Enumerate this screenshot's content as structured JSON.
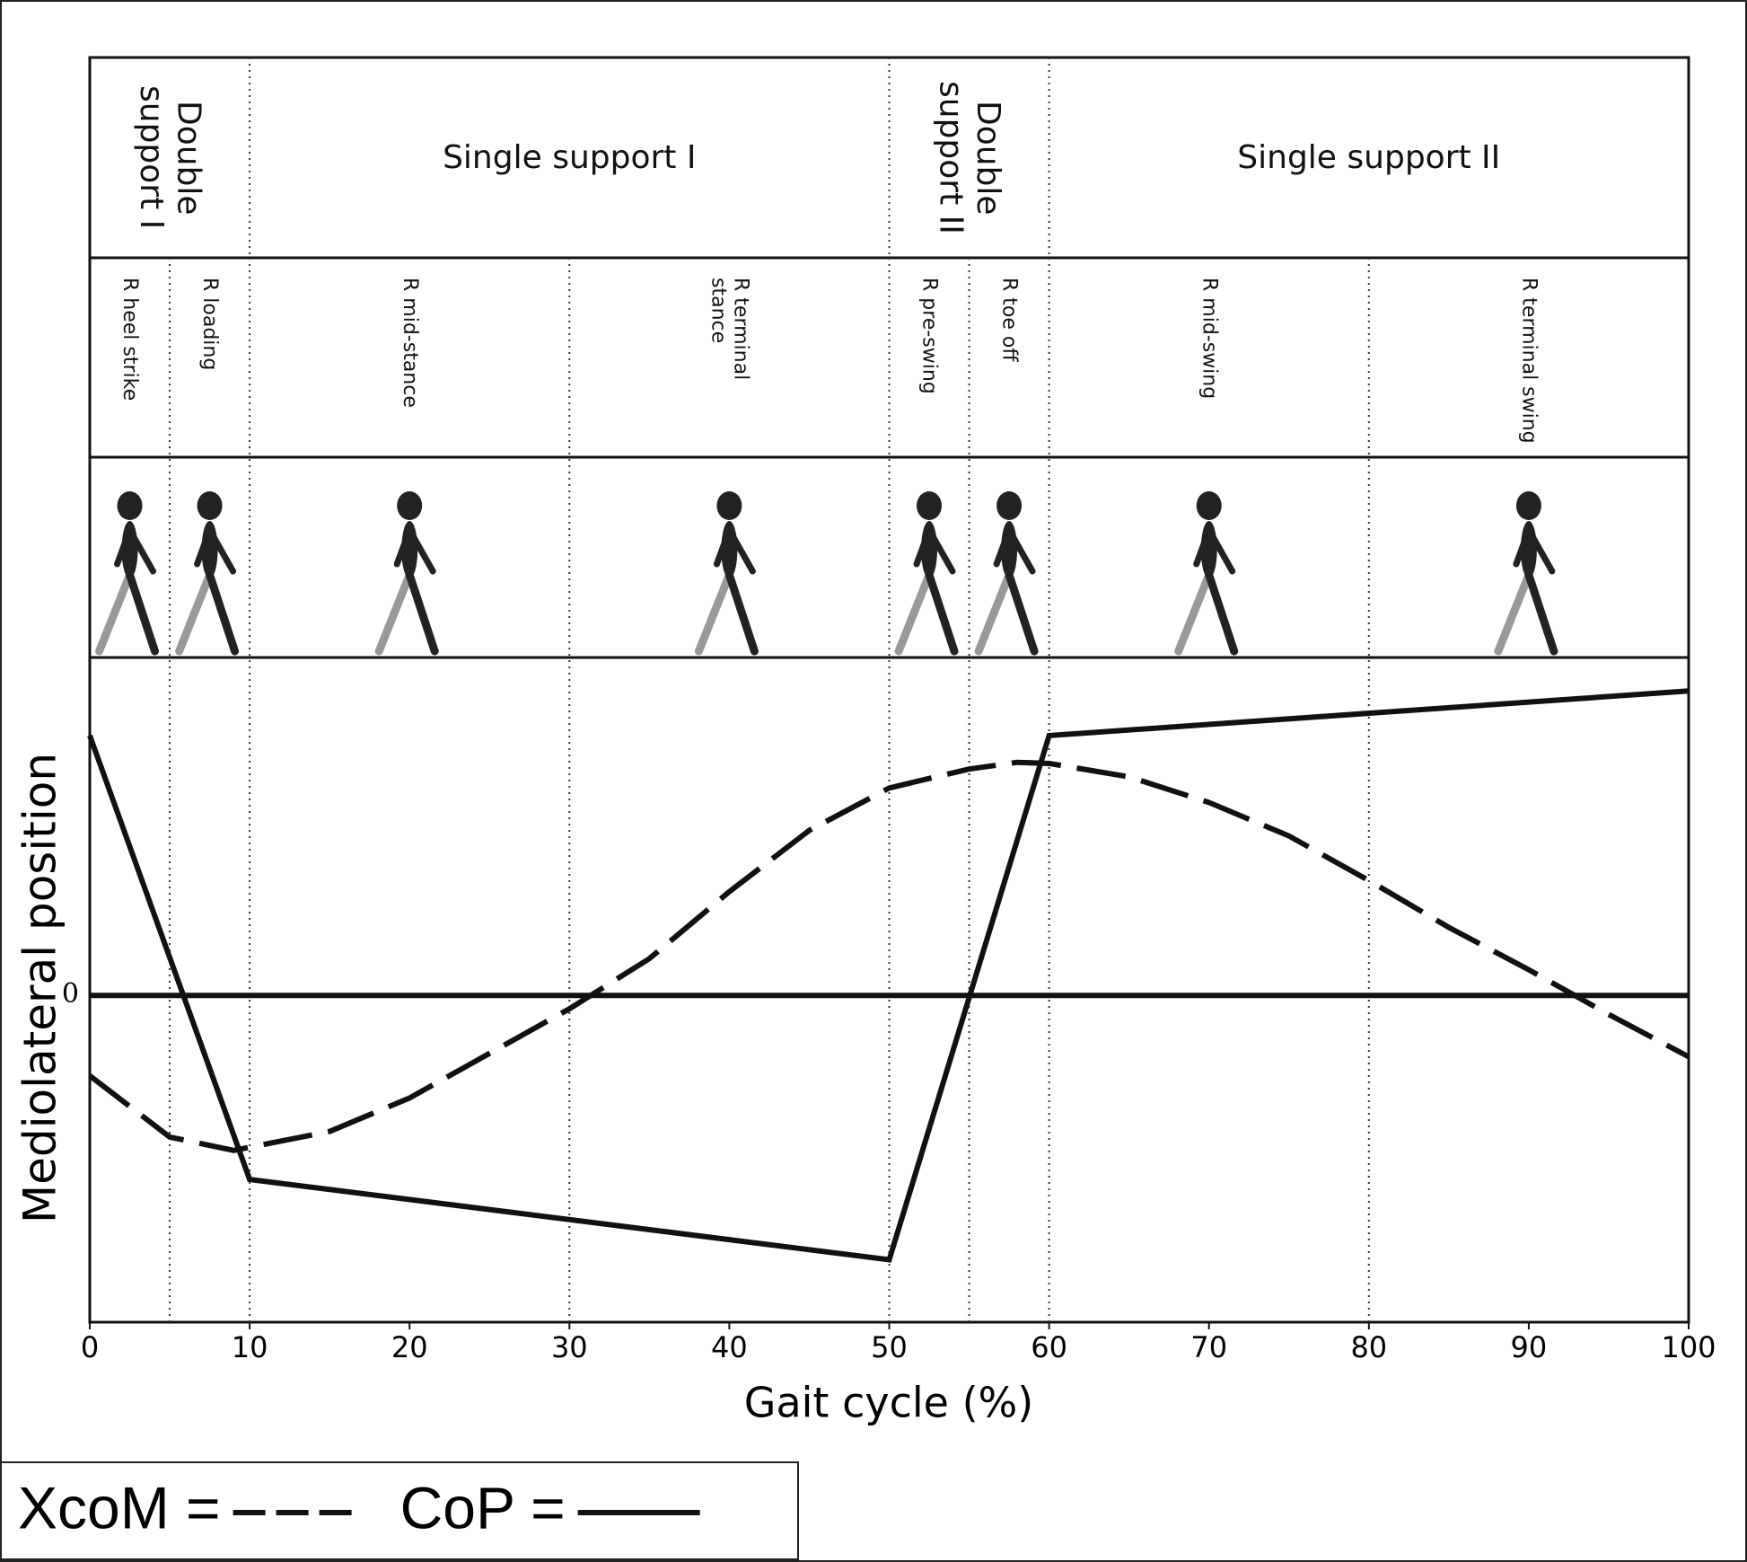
{
  "chart_data": {
    "type": "line",
    "x_label": "Gait cycle (%)",
    "y_label": "Mediolateral position",
    "xlim": [
      0,
      100
    ],
    "xticks": [
      0,
      10,
      20,
      30,
      40,
      50,
      60,
      70,
      80,
      90,
      100
    ],
    "ylim": [
      -2.93,
      3.03
    ],
    "yticks": [
      0
    ],
    "support_phases": [
      {
        "label": "Double support I",
        "start": 0,
        "end": 10
      },
      {
        "label": "Single support I",
        "start": 10,
        "end": 50
      },
      {
        "label": "Double support II",
        "start": 50,
        "end": 60
      },
      {
        "label": "Single support II",
        "start": 60,
        "end": 100
      }
    ],
    "gait_phases": [
      {
        "label": "R heel strike",
        "start": 0,
        "end": 5
      },
      {
        "label": "R loading",
        "start": 5,
        "end": 10
      },
      {
        "label": "R mid-stance",
        "start": 10,
        "end": 30
      },
      {
        "label": "R terminal stance",
        "start": 30,
        "end": 50
      },
      {
        "label": "R pre-swing",
        "start": 50,
        "end": 55
      },
      {
        "label": "R toe off",
        "start": 55,
        "end": 60
      },
      {
        "label": "R mid-swing",
        "start": 60,
        "end": 80
      },
      {
        "label": "R terminal swing",
        "start": 80,
        "end": 100
      }
    ],
    "series": [
      {
        "name": "XcoM =",
        "color": "#111111",
        "style": "dashed",
        "x": [
          0,
          5,
          9,
          15,
          20,
          25,
          30,
          35,
          40,
          45,
          50,
          55,
          58,
          60,
          65,
          70,
          75,
          80,
          85,
          90,
          95,
          100
        ],
        "values": [
          -0.72,
          -1.27,
          -1.39,
          -1.22,
          -0.92,
          -0.52,
          -0.12,
          0.33,
          0.93,
          1.48,
          1.86,
          2.03,
          2.09,
          2.08,
          1.96,
          1.73,
          1.43,
          1.03,
          0.61,
          0.23,
          -0.17,
          -0.55
        ]
      },
      {
        "name": "CoP =",
        "color": "#111111",
        "style": "solid",
        "x": [
          0,
          10,
          50,
          60,
          100
        ],
        "values": [
          2.33,
          -1.65,
          -2.37,
          2.33,
          2.73
        ]
      }
    ]
  }
}
